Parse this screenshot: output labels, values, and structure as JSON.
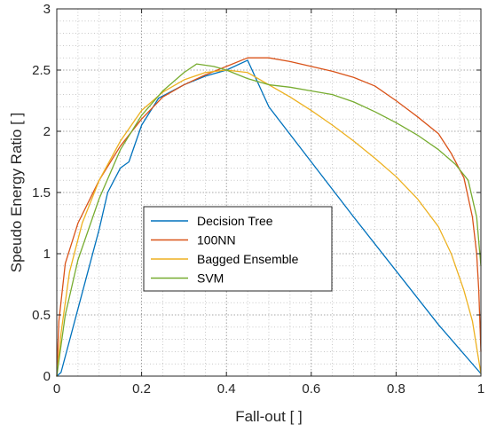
{
  "chart_data": {
    "type": "line",
    "xlabel": "Fall-out [ ]",
    "ylabel": "Speudo Energy Ratio [ ]",
    "xlim": [
      0,
      1
    ],
    "ylim": [
      0,
      3
    ],
    "xticks": [
      0,
      0.2,
      0.4,
      0.6,
      0.8,
      1
    ],
    "xtick_labels": [
      "0",
      "0.2",
      "0.4",
      "0.6",
      "0.8",
      "1"
    ],
    "yticks": [
      0,
      0.5,
      1,
      1.5,
      2,
      2.5,
      3
    ],
    "ytick_labels": [
      "0",
      "0.5",
      "1",
      "1.5",
      "2",
      "2.5",
      "3"
    ],
    "grid": "major and minor, dotted",
    "legend_position": "center-left",
    "series": [
      {
        "name": "Decision Tree",
        "color": "#0072bd",
        "points": [
          [
            0,
            0
          ],
          [
            0.01,
            0.03
          ],
          [
            0.05,
            0.55
          ],
          [
            0.1,
            1.2
          ],
          [
            0.12,
            1.5
          ],
          [
            0.15,
            1.7
          ],
          [
            0.17,
            1.75
          ],
          [
            0.2,
            2.05
          ],
          [
            0.24,
            2.27
          ],
          [
            0.3,
            2.38
          ],
          [
            0.35,
            2.45
          ],
          [
            0.4,
            2.5
          ],
          [
            0.45,
            2.58
          ],
          [
            0.5,
            2.2
          ],
          [
            0.6,
            1.75
          ],
          [
            0.7,
            1.3
          ],
          [
            0.8,
            0.86
          ],
          [
            0.9,
            0.42
          ],
          [
            1.0,
            0.02
          ]
        ]
      },
      {
        "name": "100NN",
        "color": "#d95319",
        "points": [
          [
            0,
            0
          ],
          [
            0.005,
            0.45
          ],
          [
            0.02,
            0.92
          ],
          [
            0.05,
            1.25
          ],
          [
            0.1,
            1.6
          ],
          [
            0.15,
            1.88
          ],
          [
            0.2,
            2.1
          ],
          [
            0.25,
            2.28
          ],
          [
            0.3,
            2.38
          ],
          [
            0.35,
            2.46
          ],
          [
            0.4,
            2.53
          ],
          [
            0.45,
            2.6
          ],
          [
            0.5,
            2.6
          ],
          [
            0.55,
            2.57
          ],
          [
            0.6,
            2.53
          ],
          [
            0.65,
            2.49
          ],
          [
            0.7,
            2.44
          ],
          [
            0.75,
            2.37
          ],
          [
            0.8,
            2.25
          ],
          [
            0.85,
            2.12
          ],
          [
            0.9,
            1.98
          ],
          [
            0.93,
            1.82
          ],
          [
            0.96,
            1.62
          ],
          [
            0.98,
            1.3
          ],
          [
            0.99,
            1.0
          ],
          [
            0.995,
            0.7
          ],
          [
            1.0,
            0.2
          ]
        ]
      },
      {
        "name": "Bagged Ensemble",
        "color": "#edb120",
        "points": [
          [
            0,
            0
          ],
          [
            0.01,
            0.35
          ],
          [
            0.03,
            0.85
          ],
          [
            0.06,
            1.25
          ],
          [
            0.1,
            1.6
          ],
          [
            0.15,
            1.92
          ],
          [
            0.2,
            2.17
          ],
          [
            0.25,
            2.32
          ],
          [
            0.3,
            2.42
          ],
          [
            0.35,
            2.48
          ],
          [
            0.4,
            2.5
          ],
          [
            0.45,
            2.48
          ],
          [
            0.5,
            2.38
          ],
          [
            0.55,
            2.28
          ],
          [
            0.6,
            2.17
          ],
          [
            0.65,
            2.05
          ],
          [
            0.7,
            1.92
          ],
          [
            0.75,
            1.78
          ],
          [
            0.8,
            1.63
          ],
          [
            0.85,
            1.45
          ],
          [
            0.9,
            1.22
          ],
          [
            0.93,
            1.0
          ],
          [
            0.96,
            0.7
          ],
          [
            0.98,
            0.45
          ],
          [
            1.0,
            0.02
          ]
        ]
      },
      {
        "name": "SVM",
        "color": "#77ac30",
        "points": [
          [
            0,
            0
          ],
          [
            0.02,
            0.5
          ],
          [
            0.05,
            0.95
          ],
          [
            0.1,
            1.45
          ],
          [
            0.15,
            1.85
          ],
          [
            0.2,
            2.13
          ],
          [
            0.25,
            2.33
          ],
          [
            0.3,
            2.48
          ],
          [
            0.33,
            2.55
          ],
          [
            0.37,
            2.53
          ],
          [
            0.4,
            2.5
          ],
          [
            0.45,
            2.43
          ],
          [
            0.5,
            2.38
          ],
          [
            0.55,
            2.36
          ],
          [
            0.6,
            2.33
          ],
          [
            0.65,
            2.3
          ],
          [
            0.7,
            2.24
          ],
          [
            0.75,
            2.16
          ],
          [
            0.8,
            2.07
          ],
          [
            0.85,
            1.97
          ],
          [
            0.9,
            1.85
          ],
          [
            0.94,
            1.73
          ],
          [
            0.97,
            1.6
          ],
          [
            0.99,
            1.3
          ],
          [
            1.0,
            0.9
          ]
        ]
      }
    ]
  }
}
